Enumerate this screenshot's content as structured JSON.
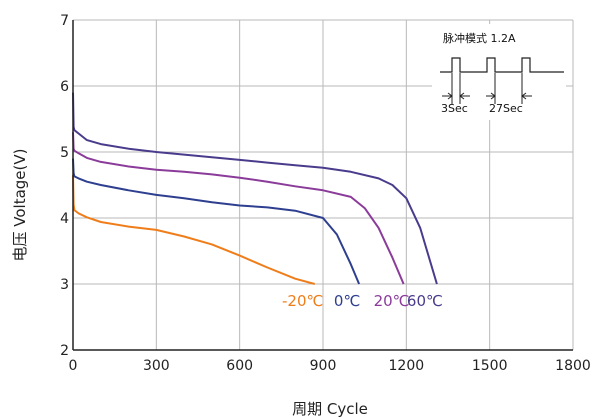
{
  "chart_data": {
    "type": "line",
    "xlabel": "周期 Cycle",
    "ylabel": "电压 Voltage(V)",
    "xlim": [
      0,
      1800
    ],
    "ylim": [
      2,
      7
    ],
    "xticks": [
      0,
      300,
      600,
      900,
      1200,
      1500,
      1800
    ],
    "yticks": [
      2,
      3,
      4,
      5,
      6,
      7
    ],
    "grid": true,
    "series": [
      {
        "name": "-20℃",
        "color": "#ef7d1a",
        "x": [
          0,
          2,
          5,
          20,
          50,
          100,
          200,
          300,
          400,
          500,
          600,
          700,
          800,
          870
        ],
        "y": [
          4.65,
          4.2,
          4.12,
          4.07,
          4.01,
          3.94,
          3.87,
          3.82,
          3.72,
          3.6,
          3.43,
          3.25,
          3.08,
          3.0
        ]
      },
      {
        "name": "0℃",
        "color": "#2e3f8f",
        "x": [
          0,
          2,
          5,
          20,
          50,
          100,
          200,
          300,
          400,
          500,
          600,
          700,
          800,
          900,
          950,
          1000,
          1030
        ],
        "y": [
          4.9,
          4.68,
          4.63,
          4.6,
          4.55,
          4.5,
          4.42,
          4.35,
          4.3,
          4.24,
          4.19,
          4.16,
          4.11,
          4.0,
          3.75,
          3.3,
          3.0
        ]
      },
      {
        "name": "20℃",
        "color": "#8b3b9a",
        "x": [
          0,
          2,
          5,
          20,
          50,
          100,
          200,
          300,
          400,
          500,
          600,
          700,
          800,
          900,
          1000,
          1050,
          1100,
          1150,
          1190
        ],
        "y": [
          5.3,
          5.05,
          5.02,
          4.98,
          4.91,
          4.85,
          4.78,
          4.73,
          4.7,
          4.66,
          4.61,
          4.55,
          4.48,
          4.42,
          4.32,
          4.15,
          3.85,
          3.4,
          3.0
        ]
      },
      {
        "name": "60℃",
        "color": "#4a3b8c",
        "x": [
          0,
          2,
          5,
          20,
          50,
          100,
          200,
          300,
          400,
          500,
          600,
          700,
          800,
          900,
          1000,
          1100,
          1150,
          1200,
          1250,
          1310
        ],
        "y": [
          5.9,
          5.38,
          5.33,
          5.28,
          5.18,
          5.12,
          5.05,
          5.0,
          4.96,
          4.92,
          4.88,
          4.84,
          4.8,
          4.76,
          4.7,
          4.6,
          4.5,
          4.3,
          3.85,
          3.0
        ]
      }
    ],
    "annotation": {
      "title": "脉冲模式  1.2A",
      "pulse_width": "3Sec",
      "interval": "27Sec"
    }
  }
}
